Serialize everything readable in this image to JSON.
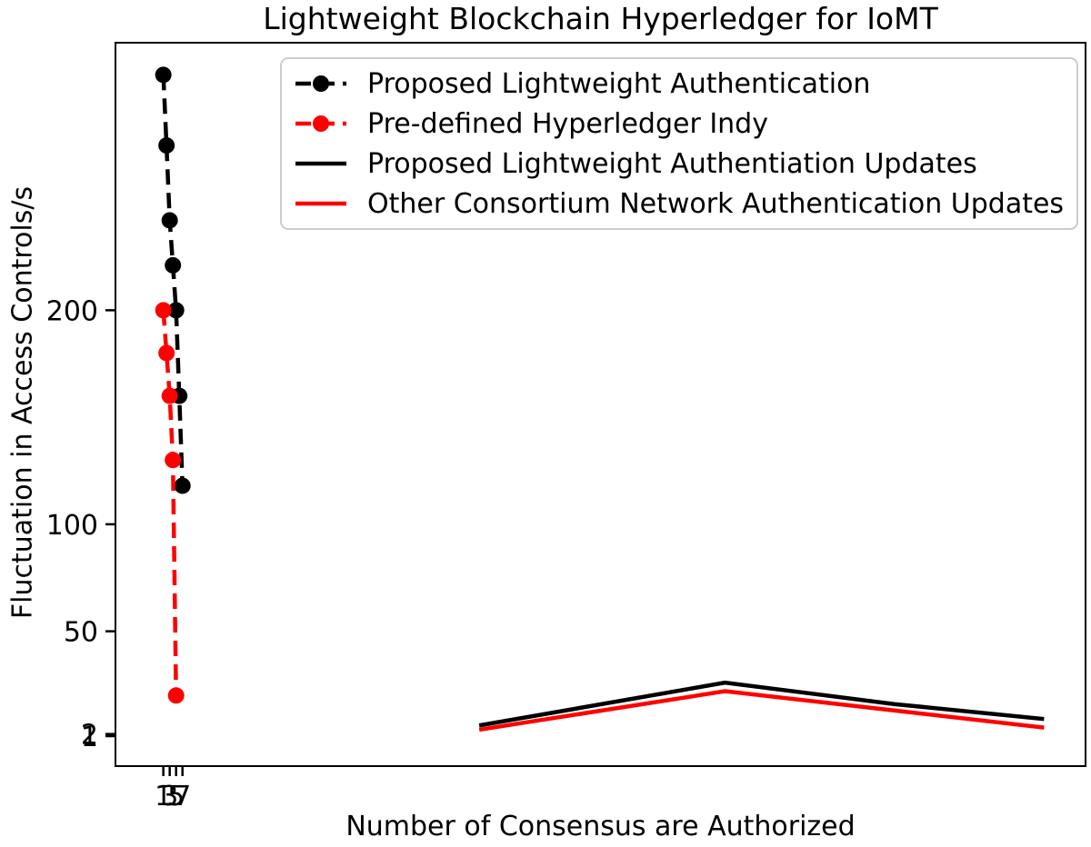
{
  "chart_data": {
    "type": "line",
    "title": "Lightweight Blockchain Hyperledger for IoMT",
    "xlabel": "Number of Consensus are Authorized",
    "ylabel": "Fluctuation in Access Controls/s",
    "xlim": [
      -14,
      290
    ],
    "ylim": [
      -13,
      325
    ],
    "xticks": [
      1,
      3,
      5,
      7
    ],
    "yticks": [
      1,
      2,
      50,
      100,
      200
    ],
    "grid": false,
    "legend_position": "upper right",
    "series": [
      {
        "name": "Proposed Lightweight Authentication",
        "color": "#000000",
        "style": "dashed",
        "dash": "17 9",
        "marker": "circle",
        "x": [
          1,
          2,
          3,
          4,
          5,
          6,
          7
        ],
        "y": [
          310,
          277,
          242,
          221,
          200,
          160,
          118
        ]
      },
      {
        "name": "Pre-defined Hyperledger Indy",
        "color": "#ff0000",
        "style": "dashed",
        "dash": "17 9",
        "marker": "circle",
        "x": [
          1,
          2,
          3,
          4,
          5
        ],
        "y": [
          200,
          180,
          160,
          130,
          20
        ]
      },
      {
        "name": "Proposed Lightweight Authentiation Updates",
        "color": "#000000",
        "style": "solid",
        "dash": "none",
        "marker": "none",
        "x": [
          100,
          177,
          230,
          277
        ],
        "y": [
          6,
          26,
          16,
          9
        ]
      },
      {
        "name": "Other Consortium Network Authentication Updates",
        "color": "#ff0000",
        "style": "solid",
        "dash": "none",
        "marker": "none",
        "x": [
          100,
          177,
          230,
          277
        ],
        "y": [
          4,
          22,
          13,
          5
        ]
      }
    ]
  },
  "colors": {
    "axes": "#000000",
    "text": "#000000",
    "legend_border": "#cccccc",
    "background": "#ffffff"
  }
}
